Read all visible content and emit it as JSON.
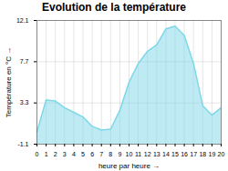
{
  "chart_data": {
    "type": "area",
    "title": "Evolution de la température",
    "xlabel": "heure par heure",
    "ylabel": "Température en °C",
    "x": [
      0,
      1,
      2,
      3,
      4,
      5,
      6,
      7,
      8,
      9,
      10,
      11,
      12,
      13,
      14,
      15,
      16,
      17,
      18,
      19,
      20
    ],
    "values": [
      0.2,
      3.6,
      3.5,
      2.8,
      2.3,
      1.8,
      0.8,
      0.4,
      0.5,
      2.5,
      5.5,
      7.5,
      8.8,
      9.5,
      11.2,
      11.5,
      10.5,
      7.5,
      3.0,
      2.0,
      2.8
    ],
    "color": "#7dd8e8",
    "xlim": [
      0,
      20
    ],
    "xticks": [
      0,
      1,
      2,
      3,
      4,
      5,
      6,
      7,
      8,
      9,
      10,
      11,
      12,
      13,
      14,
      15,
      16,
      17,
      18,
      19,
      20
    ],
    "ylim": [
      -1.1,
      12.1
    ],
    "yticks": [
      -1.1,
      3.3,
      7.7,
      12.1
    ],
    "grid": true
  }
}
